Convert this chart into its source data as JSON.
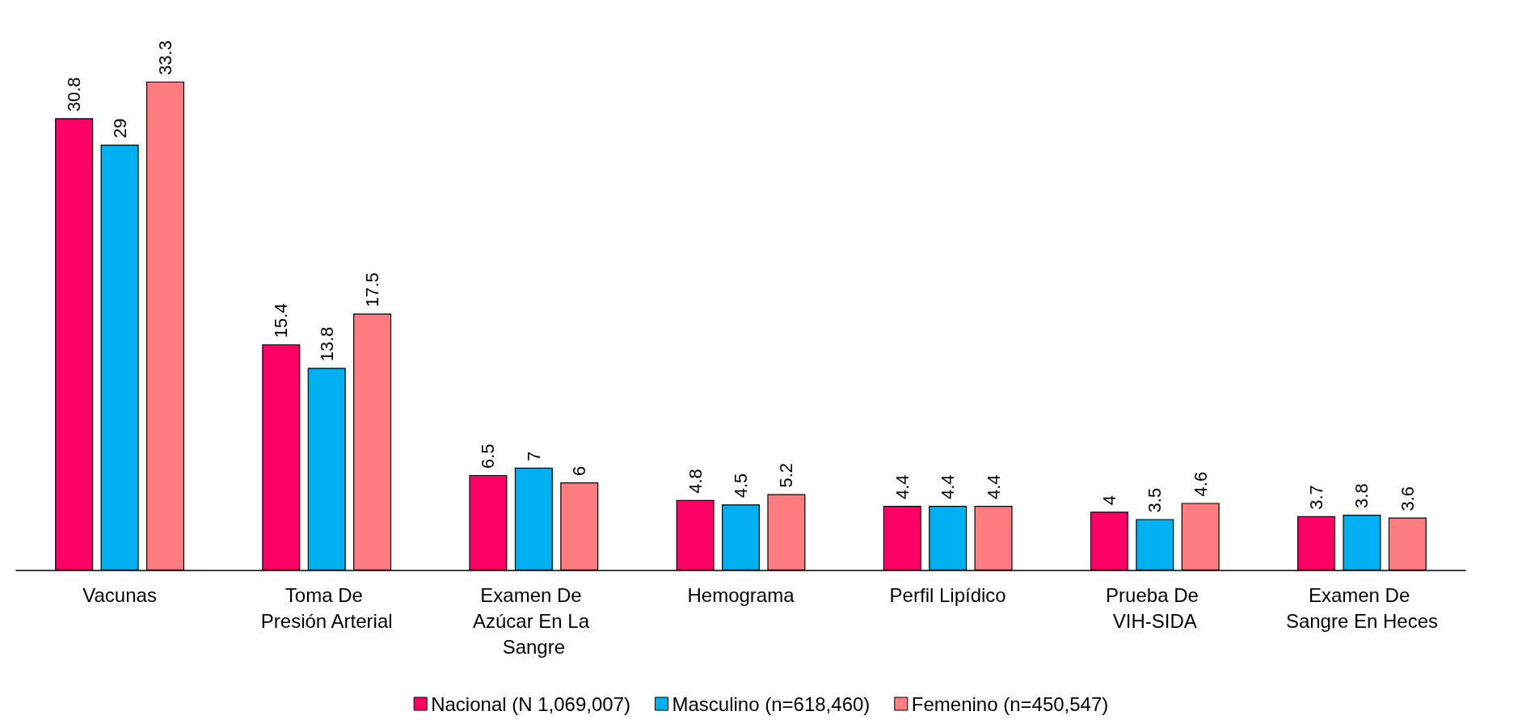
{
  "chart_data": {
    "type": "bar",
    "categories": [
      "Vacunas",
      "Toma De Presión Arterial",
      "Examen De Azúcar En La Sangre",
      "Hemograma",
      "Perfil Lipídico",
      "Prueba De VIH-SIDA",
      "Examen De Sangre En Heces"
    ],
    "series": [
      {
        "name": "Nacional (N 1,069,007)",
        "color": "#ff0066",
        "values": [
          30.8,
          15.4,
          6.5,
          4.8,
          4.4,
          4,
          3.7
        ]
      },
      {
        "name": "Masculino (n=618,460)",
        "color": "#00b0f0",
        "values": [
          29,
          13.8,
          7,
          4.5,
          4.4,
          3.5,
          3.8
        ]
      },
      {
        "name": "Femenino (n=450,547)",
        "color": "#ff7c80",
        "values": [
          33.3,
          17.5,
          6,
          5.2,
          4.4,
          4.6,
          3.6
        ]
      }
    ],
    "data_labels": true,
    "legend": "bottom"
  }
}
